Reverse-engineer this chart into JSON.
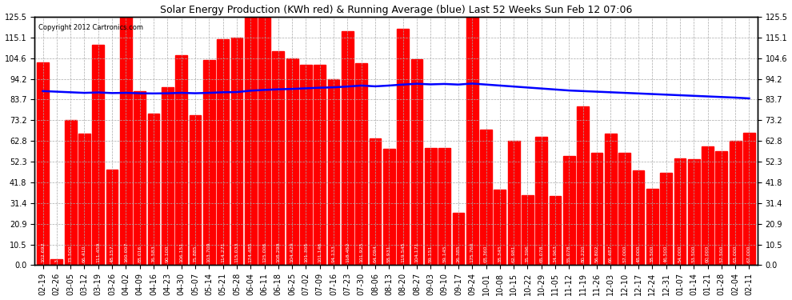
{
  "title": "Solar Energy Production (KWh red) & Running Average (blue) Last 52 Weeks Sun Feb 12 07:06",
  "copyright": "Copyright 2012 Cartronics.com",
  "bar_color": "#ff0000",
  "avg_line_color": "#0000ff",
  "background_color": "#ffffff",
  "grid_color": "#aaaaaa",
  "dates": [
    "02-19",
    "02-26",
    "03-05",
    "03-12",
    "03-19",
    "03-26",
    "04-02",
    "04-09",
    "04-16",
    "04-23",
    "04-30",
    "05-07",
    "05-14",
    "05-21",
    "05-28",
    "06-04",
    "06-11",
    "06-18",
    "06-25",
    "07-02",
    "07-09",
    "07-16",
    "07-23",
    "07-30",
    "08-06",
    "08-13",
    "08-20",
    "08-27",
    "09-03",
    "09-10",
    "09-17",
    "09-24",
    "10-01",
    "10-08",
    "10-15",
    "10-22",
    "10-29",
    "11-05",
    "11-12",
    "11-19",
    "11-26",
    "12-03",
    "12-10",
    "12-17",
    "12-24",
    "12-31",
    "01-07",
    "01-14",
    "01-21",
    "01-28",
    "02-04",
    "02-11"
  ],
  "bar_values": [
    102.692,
    3.152,
    73.5,
    66.41,
    111.459,
    48.157,
    160.007,
    88.016,
    76.583,
    90.1,
    106.151,
    75.885,
    103.709,
    114.271,
    115.033,
    174.485,
    125.006,
    108.299,
    104.429,
    101.305,
    101.146,
    94.133,
    118.452,
    101.925,
    64.094,
    58.931,
    119.545,
    104.171,
    59.151,
    59.145,
    26.385,
    175.76,
    68.36,
    38.345,
    62.981,
    35.396,
    65.078,
    34.963,
    55.078,
    80.22,
    56.802,
    66.487,
    57.0,
    48.0,
    38.5,
    46.5,
    54.0,
    53.5,
    60.0,
    57.5,
    63.0,
    67.0
  ],
  "running_avg": [
    88.0,
    87.7,
    87.4,
    87.1,
    87.3,
    87.0,
    87.1,
    86.9,
    86.8,
    86.9,
    87.1,
    86.9,
    87.1,
    87.4,
    87.5,
    88.2,
    88.6,
    88.9,
    89.1,
    89.4,
    89.7,
    89.9,
    90.3,
    90.8,
    90.4,
    90.8,
    91.3,
    91.7,
    91.4,
    91.6,
    91.3,
    91.8,
    91.3,
    90.8,
    90.3,
    89.8,
    89.3,
    88.8,
    88.3,
    88.0,
    87.7,
    87.4,
    87.1,
    86.8,
    86.5,
    86.2,
    85.9,
    85.6,
    85.3,
    85.0,
    84.7,
    84.3
  ],
  "ylim": [
    0,
    125.5
  ],
  "yticks": [
    0.0,
    10.5,
    20.9,
    31.4,
    41.8,
    52.3,
    62.8,
    73.2,
    83.7,
    94.2,
    104.6,
    115.1,
    125.5
  ],
  "title_fontsize": 9,
  "tick_fontsize": 7,
  "label_fontsize": 4.5,
  "copyright_fontsize": 6
}
